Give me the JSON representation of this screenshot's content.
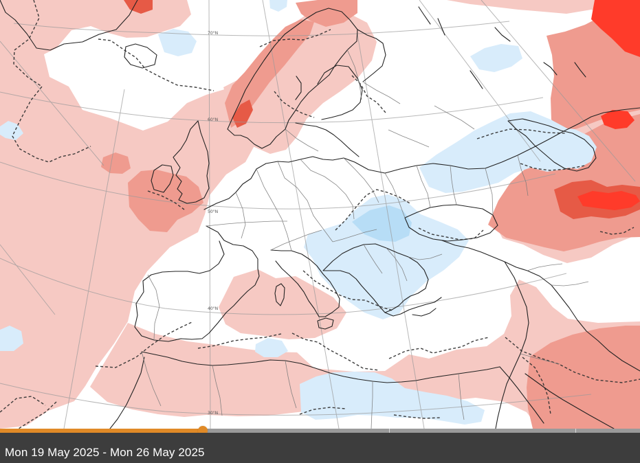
{
  "map": {
    "latitude_labels": [
      "70°N",
      "60°N",
      "50°N",
      "40°N",
      "30°N"
    ],
    "colors": {
      "warm_light": "#f6c9c3",
      "warm_medium": "#ef9b8f",
      "warm_strong": "#e65a46",
      "warm_intense": "#ff3b2a",
      "cool_light": "#d8ecfb",
      "cool_medium": "#b7ddf6",
      "coast": "#222222",
      "border": "#7a7a7a",
      "graticule": "#9a9a9a",
      "dashed_line": "#333333"
    }
  },
  "timeline": {
    "progress": 0.317,
    "tick_fractions": [
      0.317,
      0.608,
      0.899
    ]
  },
  "footer": {
    "date_range": "Mon 19 May 2025 - Mon 26 May 2025",
    "background": "#3d3d3d"
  }
}
